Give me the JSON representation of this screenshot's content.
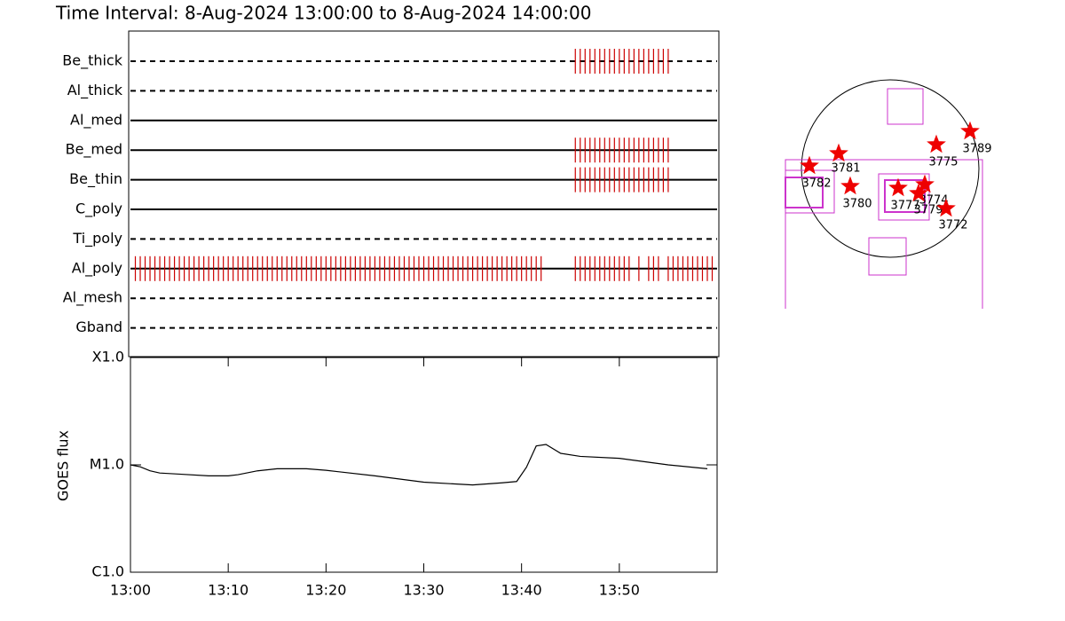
{
  "chart_data": [
    {
      "type": "timeline",
      "title": "Time Interval:  8-Aug-2024 13:00:00 to  8-Aug-2024 14:00:00",
      "color": "#cc0000",
      "xlim": [
        0,
        60
      ],
      "series": [
        {
          "name": "Be_thick",
          "dashed": true,
          "times": [
            45.5,
            46,
            46.5,
            47,
            47.5,
            48,
            48.5,
            49,
            49.5,
            50,
            50.5,
            51,
            51.5,
            52,
            52.5,
            53,
            53.5,
            54,
            54.5,
            55
          ]
        },
        {
          "name": "Al_thick",
          "dashed": true,
          "times": []
        },
        {
          "name": "Al_med",
          "dashed": false,
          "times": []
        },
        {
          "name": "Be_med",
          "dashed": false,
          "times": [
            45.5,
            46,
            46.5,
            47,
            47.5,
            48,
            48.5,
            49,
            49.5,
            50,
            50.5,
            51,
            51.5,
            52,
            52.5,
            53,
            53.5,
            54,
            54.5,
            55
          ]
        },
        {
          "name": "Be_thin",
          "dashed": false,
          "times": [
            45.5,
            46,
            46.5,
            47,
            47.5,
            48,
            48.5,
            49,
            49.5,
            50,
            50.5,
            51,
            51.5,
            52,
            52.5,
            53,
            53.5,
            54,
            54.5,
            55
          ]
        },
        {
          "name": "C_poly",
          "dashed": false,
          "times": []
        },
        {
          "name": "Ti_poly",
          "dashed": true,
          "times": []
        },
        {
          "name": "Al_poly",
          "dashed": false,
          "times": [
            0.5,
            1,
            1.5,
            2,
            2.5,
            3,
            3.5,
            4,
            4.5,
            5,
            5.5,
            6,
            6.5,
            7,
            7.5,
            8,
            8.5,
            9,
            9.5,
            10,
            10.5,
            11,
            11.5,
            12,
            12.5,
            13,
            13.5,
            14,
            14.5,
            15,
            15.5,
            16,
            16.5,
            17,
            17.5,
            18,
            18.5,
            19,
            19.5,
            20,
            20.5,
            21,
            21.5,
            22,
            22.5,
            23,
            23.5,
            24,
            24.5,
            25,
            25.5,
            26,
            26.5,
            27,
            27.5,
            28,
            28.5,
            29,
            29.5,
            30,
            30.5,
            31,
            31.5,
            32,
            32.5,
            33,
            33.5,
            34,
            34.5,
            35,
            35.5,
            36,
            36.5,
            37,
            37.5,
            38,
            38.5,
            39,
            39.5,
            40,
            40.5,
            41,
            41.5,
            42,
            45.5,
            46,
            46.5,
            47,
            47.5,
            48,
            48.5,
            49,
            49.5,
            50,
            50.5,
            51,
            52,
            53,
            53.5,
            54,
            55,
            55.5,
            56,
            56.5,
            57,
            57.5,
            58,
            58.5,
            59,
            59.5
          ]
        },
        {
          "name": "Al_mesh",
          "dashed": true,
          "times": []
        },
        {
          "name": "Gband",
          "dashed": true,
          "times": []
        }
      ]
    },
    {
      "type": "line",
      "y_label": "GOES flux",
      "log_y": true,
      "color": "#000000",
      "x": [
        0,
        1,
        2,
        3,
        5,
        8,
        10,
        11,
        13,
        15,
        18,
        20,
        25,
        30,
        35,
        38,
        39.5,
        40.5,
        41.5,
        42.5,
        44,
        46,
        50,
        55,
        59
      ],
      "values": [
        1e-05,
        9.6e-06,
        8.8e-06,
        8.4e-06,
        8.2e-06,
        7.9e-06,
        7.9e-06,
        8.1e-06,
        8.8e-06,
        9.2e-06,
        9.2e-06,
        8.9e-06,
        7.9e-06,
        6.9e-06,
        6.5e-06,
        6.8e-06,
        7e-06,
        9.5e-06,
        1.5e-05,
        1.55e-05,
        1.28e-05,
        1.2e-05,
        1.15e-05,
        1e-05,
        9.2e-06
      ],
      "xlim": [
        0,
        60
      ],
      "xticks": [
        {
          "value": 0,
          "label": "13:00"
        },
        {
          "value": 10,
          "label": "13:10"
        },
        {
          "value": 20,
          "label": "13:20"
        },
        {
          "value": 30,
          "label": "13:30"
        },
        {
          "value": 40,
          "label": "13:40"
        },
        {
          "value": 50,
          "label": "13:50"
        }
      ],
      "ylim": [
        1e-06,
        0.0001
      ],
      "yticks": [
        {
          "value": 1e-06,
          "label": "C1.0"
        },
        {
          "value": 1e-05,
          "label": "M1.0"
        },
        {
          "value": 0.0001,
          "label": "X1.0"
        }
      ]
    }
  ],
  "map": {
    "regions": [
      {
        "label": "3789"
      },
      {
        "label": "3775"
      },
      {
        "label": "3781"
      },
      {
        "label": "3782"
      },
      {
        "label": "3780"
      },
      {
        "label": "3777"
      },
      {
        "label": "3774"
      },
      {
        "label": "3779"
      },
      {
        "label": "3772"
      }
    ]
  }
}
